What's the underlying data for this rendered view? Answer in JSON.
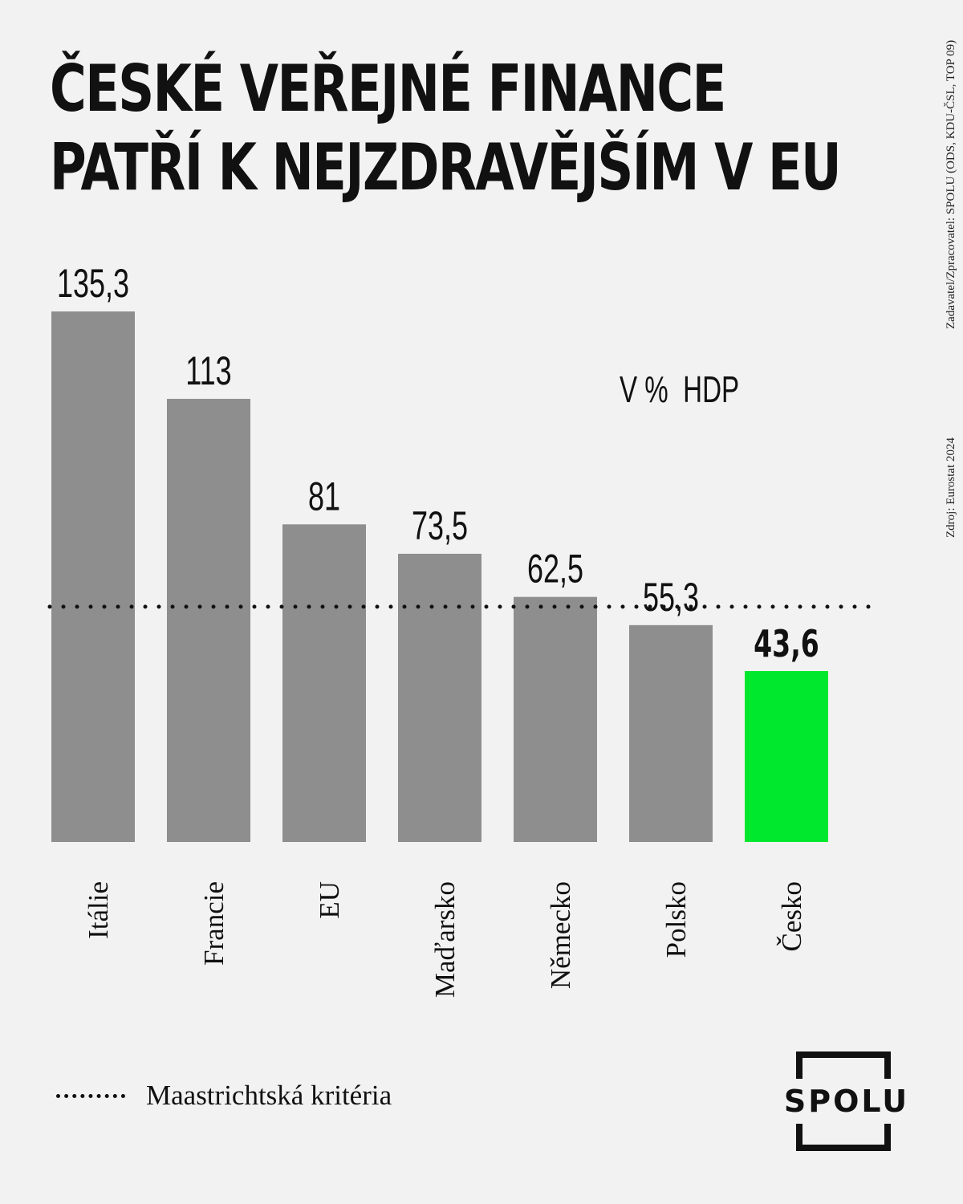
{
  "title_lines": [
    "ČESKÉ VEŘEJNÉ FINANCE",
    "PATŘÍ K NEJZDRAVĚJŠÍM V EU"
  ],
  "side_notes": {
    "commissioner": "Zadavatel/Zpracovatel: SPOLU (ODS, KDU-ČSL, TOP 09)",
    "source": "Zdroj: Eurostat 2024"
  },
  "unit_label": "V %  HDP",
  "legend": {
    "label": "Maastrichtská kritéria"
  },
  "logo_text": "SPOLU",
  "colors": {
    "bar": "#8e8e8e",
    "highlight": "#00e82e",
    "background": "#f2f2f2",
    "text": "#111111"
  },
  "chart_data": {
    "type": "bar",
    "categories": [
      "Itálie",
      "Francie",
      "EU",
      "Maďarsko",
      "Německo",
      "Polsko",
      "Česko"
    ],
    "values": [
      135.3,
      113,
      81,
      73.5,
      62.5,
      55.3,
      43.6
    ],
    "value_labels": [
      "135,3",
      "113",
      "81",
      "73,5",
      "62,5",
      "55,3",
      "43,6"
    ],
    "highlight": "Česko",
    "reference_line": {
      "value": 60,
      "label": "Maastrichtská kritéria",
      "style": "dotted"
    },
    "ylim": [
      0,
      135.3
    ],
    "grid": false
  }
}
